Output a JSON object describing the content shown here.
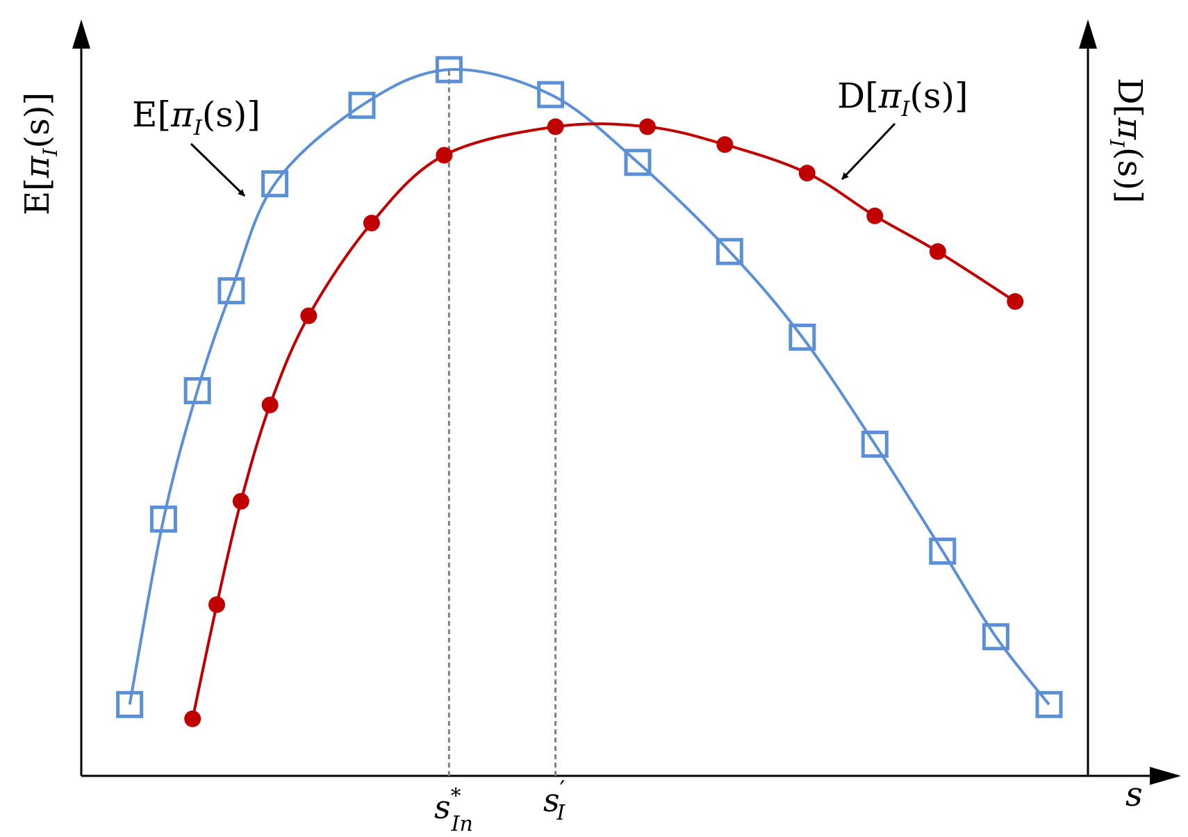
{
  "chart_data": {
    "type": "line",
    "xlabel": "s",
    "ylabel_left": "E[π_I(s)]",
    "ylabel_right": "D[π_I(s)]",
    "grid": false,
    "axis_ticks": false,
    "colors": {
      "E": "#5b8fd6",
      "D": "#c00000",
      "axis": "#000000",
      "reference_line": "#808080"
    },
    "series": [
      {
        "name": "E[π_I(s)]",
        "marker": "open-square",
        "x": [
          0.05,
          0.085,
          0.12,
          0.155,
          0.2,
          0.29,
          0.38,
          0.485,
          0.575,
          0.67,
          0.745,
          0.82,
          0.89,
          0.945,
          1.0
        ],
        "y": [
          0.1,
          0.36,
          0.54,
          0.68,
          0.83,
          0.94,
          0.99,
          0.955,
          0.86,
          0.735,
          0.615,
          0.465,
          0.315,
          0.195,
          0.1
        ]
      },
      {
        "name": "D[π_I(s)]",
        "marker": "filled-circle",
        "x": [
          0.115,
          0.14,
          0.165,
          0.195,
          0.235,
          0.3,
          0.375,
          0.49,
          0.585,
          0.665,
          0.75,
          0.82,
          0.885,
          0.965
        ],
        "y": [
          0.08,
          0.24,
          0.385,
          0.52,
          0.645,
          0.775,
          0.87,
          0.91,
          0.91,
          0.885,
          0.845,
          0.785,
          0.735,
          0.665
        ]
      }
    ],
    "reference_lines": [
      {
        "x": 0.38,
        "label": {
          "base": "s",
          "sup": "*",
          "sub": "In"
        }
      },
      {
        "x": 0.49,
        "label": {
          "base": "s",
          "sup": "′",
          "sub": "I"
        }
      }
    ],
    "annotations": [
      {
        "series": "E[π_I(s)]",
        "text": {
          "pre": "E[",
          "pi": "π",
          "sub": "I",
          "post": "(s)]"
        }
      },
      {
        "series": "D[π_I(s)]",
        "text": {
          "pre": "D[",
          "pi": "π",
          "sub": "I",
          "post": "(s)]"
        }
      }
    ]
  }
}
